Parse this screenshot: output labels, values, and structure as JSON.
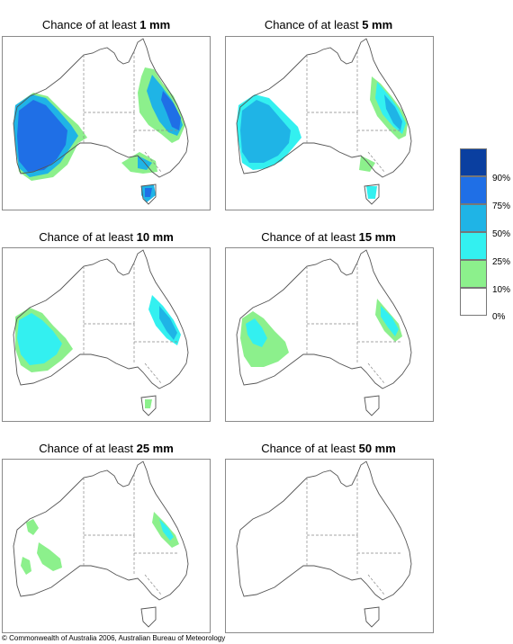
{
  "panels": [
    {
      "title_prefix": "Chance of at least ",
      "threshold": "1 mm"
    },
    {
      "title_prefix": "Chance of at least ",
      "threshold": "5 mm"
    },
    {
      "title_prefix": "Chance of at least ",
      "threshold": "10 mm"
    },
    {
      "title_prefix": "Chance of at least ",
      "threshold": "15 mm"
    },
    {
      "title_prefix": "Chance of at least ",
      "threshold": "25 mm"
    },
    {
      "title_prefix": "Chance of at least ",
      "threshold": "50 mm"
    }
  ],
  "legend": {
    "labels": [
      "90%",
      "75%",
      "50%",
      "25%",
      "10%",
      "0%"
    ],
    "colors": [
      "#0a3fa0",
      "#1f6fe6",
      "#1fb4e6",
      "#33f0f0",
      "#8cf08c",
      "#ffffff"
    ]
  },
  "copyright": "© Commonwealth of Australia 2006, Australian Bureau of Meteorology"
}
